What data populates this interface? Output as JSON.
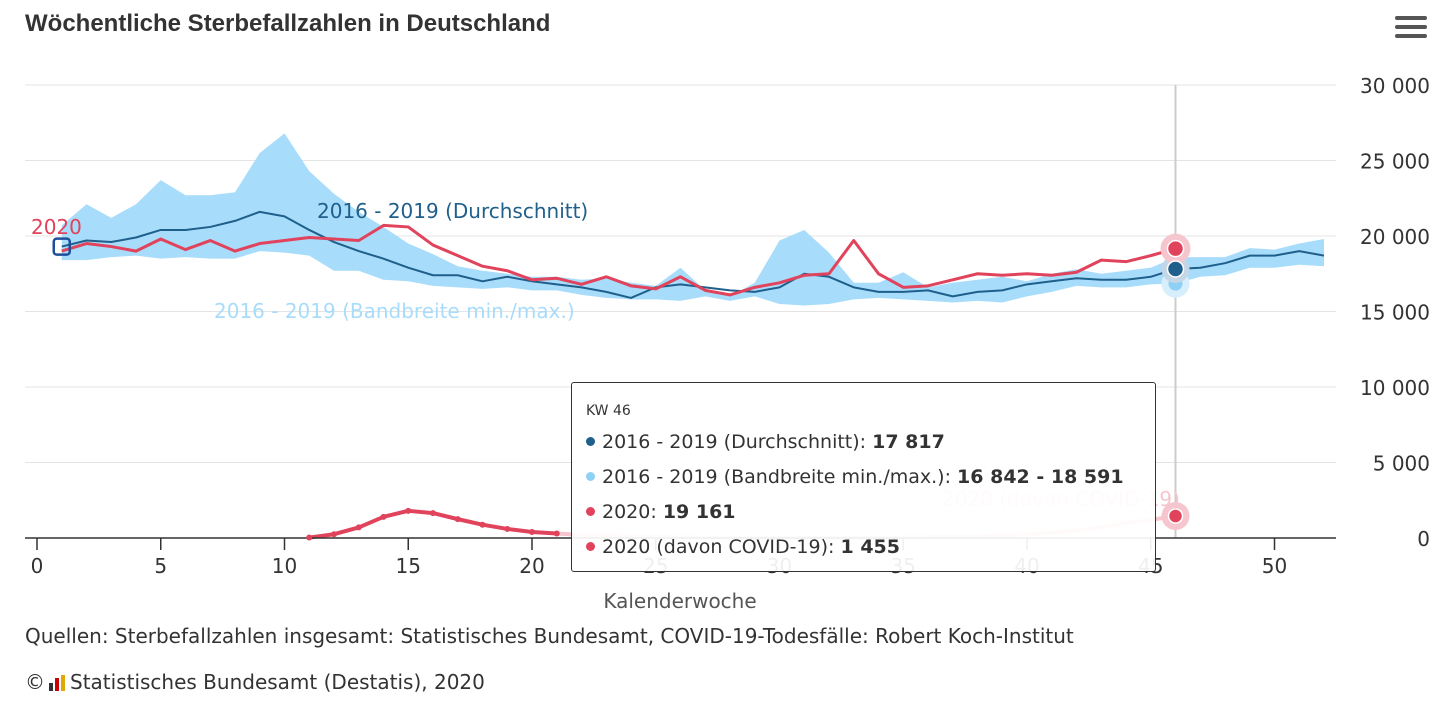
{
  "header": {
    "title": "Wöchentliche Sterbefallzahlen in Deutschland",
    "menu_icon": "hamburger-menu-icon"
  },
  "chart_data": {
    "type": "line",
    "xlabel": "Kalenderwoche",
    "xticks": [
      0,
      5,
      10,
      15,
      20,
      25,
      30,
      35,
      40,
      45,
      50
    ],
    "xlim": [
      0,
      52
    ],
    "ylim": [
      0,
      30000
    ],
    "yticks": [
      0,
      5000,
      10000,
      15000,
      20000,
      25000,
      30000
    ],
    "ytick_labels": [
      "0",
      "5 000",
      "10 000",
      "15 000",
      "20 000",
      "25 000",
      "30 000"
    ],
    "series_labels": {
      "avg": "2016 - 2019 (Durchschnitt)",
      "band": "2016 - 2019 (Bandbreite min./max.)",
      "y2020": "2020",
      "covid": "2020 (davon COVID-19)"
    },
    "colors": {
      "avg": "#1f5f8b",
      "band": "#a8dcfb",
      "y2020": "#e0435b",
      "covid": "#e0435b"
    },
    "weeks": [
      1,
      2,
      3,
      4,
      5,
      6,
      7,
      8,
      9,
      10,
      11,
      12,
      13,
      14,
      15,
      16,
      17,
      18,
      19,
      20,
      21,
      22,
      23,
      24,
      25,
      26,
      27,
      28,
      29,
      30,
      31,
      32,
      33,
      34,
      35,
      36,
      37,
      38,
      39,
      40,
      41,
      42,
      43,
      44,
      45,
      46,
      47,
      48,
      49,
      50,
      51,
      52
    ],
    "avg": [
      19300,
      19700,
      19600,
      19900,
      20400,
      20400,
      20600,
      21000,
      21600,
      21300,
      20400,
      19600,
      19000,
      18500,
      17900,
      17400,
      17400,
      17000,
      17300,
      17000,
      16800,
      16600,
      16300,
      15900,
      16600,
      16800,
      16600,
      16400,
      16300,
      16600,
      17500,
      17300,
      16600,
      16300,
      16300,
      16400,
      16000,
      16300,
      16400,
      16800,
      17000,
      17200,
      17100,
      17100,
      17300,
      17817,
      17900,
      18200,
      18700,
      18700,
      19000,
      18700
    ],
    "band_min": [
      18400,
      18400,
      18600,
      18700,
      18500,
      18600,
      18500,
      18500,
      19000,
      18900,
      18700,
      17700,
      17700,
      17100,
      17000,
      16700,
      16600,
      16500,
      16600,
      16400,
      16400,
      16100,
      15900,
      15800,
      15800,
      15700,
      16000,
      15700,
      16000,
      15500,
      15400,
      15500,
      15800,
      15900,
      15800,
      15700,
      15600,
      15700,
      15600,
      16000,
      16300,
      16700,
      16600,
      16600,
      16800,
      16842,
      17300,
      17400,
      17900,
      17900,
      18100,
      18000
    ],
    "band_max": [
      20700,
      22100,
      21200,
      22100,
      23700,
      22700,
      22700,
      22900,
      25500,
      26800,
      24300,
      22800,
      21600,
      20600,
      19500,
      18800,
      18000,
      17700,
      17500,
      17300,
      17300,
      17100,
      17200,
      16900,
      16700,
      17900,
      16400,
      16000,
      16900,
      19700,
      20400,
      18900,
      16900,
      16900,
      17600,
      16600,
      16900,
      17100,
      17300,
      17000,
      17500,
      17800,
      17500,
      17700,
      17900,
      18591,
      18600,
      18600,
      19200,
      19100,
      19500,
      19800
    ],
    "y2020": [
      19000,
      19500,
      19300,
      19000,
      19800,
      19100,
      19700,
      19000,
      19500,
      19700,
      19900,
      19800,
      19700,
      20700,
      20600,
      19400,
      18700,
      18000,
      17700,
      17100,
      17200,
      16800,
      17300,
      16700,
      16500,
      17300,
      16400,
      16100,
      16600,
      16900,
      17400,
      17500,
      19700,
      17500,
      16600,
      16700,
      17100,
      17500,
      17400,
      17500,
      17400,
      17600,
      18400,
      18300,
      18700,
      19161
    ],
    "covid_weeks": [
      11,
      12,
      13,
      14,
      15,
      16,
      17,
      18,
      19,
      20,
      21,
      22,
      23,
      24,
      25,
      26,
      27,
      28,
      29,
      30,
      31,
      32,
      33,
      34,
      35,
      36,
      37,
      38,
      39,
      40,
      41,
      42,
      43,
      44,
      45,
      46
    ],
    "covid": [
      30,
      250,
      700,
      1400,
      1800,
      1650,
      1250,
      880,
      600,
      400,
      300,
      200,
      150,
      100,
      80,
      50,
      30,
      20,
      10,
      10,
      10,
      10,
      15,
      20,
      40,
      60,
      80,
      100,
      150,
      250,
      350,
      500,
      700,
      1000,
      1200,
      1455
    ]
  },
  "tooltip": {
    "week": "KW 46",
    "rows": [
      {
        "label": "2016 - 2019 (Durchschnitt)",
        "value": "17 817",
        "color": "#1f5f8b"
      },
      {
        "label": "2016 - 2019 (Bandbreite min./max.)",
        "value": "16 842 - 18 591",
        "color": "#8fd0f5"
      },
      {
        "label": "2020",
        "value": "19 161",
        "color": "#e0435b"
      },
      {
        "label": "2020 (davon COVID-19)",
        "value": "1 455",
        "color": "#e0435b"
      }
    ]
  },
  "footer": {
    "source": "Quellen: Sterbefallzahlen insgesamt: Statistisches Bundesamt, COVID-19-Todesfälle: Robert Koch-Institut",
    "copyright_symbol": "©",
    "credit": "Statistisches Bundesamt (Destatis), 2020",
    "logo_icon": "destatis-logo-icon"
  }
}
